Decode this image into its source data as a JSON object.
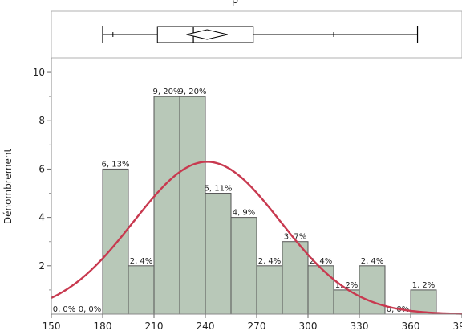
{
  "chart_data": {
    "type": "histogram",
    "title": "",
    "title_visible_fragment": "p",
    "xlabel": "",
    "ylabel": "Dénombrement",
    "xlim": [
      150,
      390
    ],
    "ylim": [
      0,
      10.6
    ],
    "x_ticks": [
      "150",
      "180",
      "210",
      "240",
      "270",
      "300",
      "330",
      "360",
      "390"
    ],
    "y_ticks": [
      "2",
      "4",
      "6",
      "8",
      "10"
    ],
    "bin_width": 15,
    "bins": [
      {
        "start": 150,
        "count": 0,
        "label": "0, 0%"
      },
      {
        "start": 165,
        "count": 0,
        "label": "0, 0%"
      },
      {
        "start": 180,
        "count": 6,
        "label": "6, 13%"
      },
      {
        "start": 195,
        "count": 2,
        "label": "2, 4%"
      },
      {
        "start": 210,
        "count": 9,
        "label": "9, 20%"
      },
      {
        "start": 225,
        "count": 9,
        "label": "9, 20%"
      },
      {
        "start": 240,
        "count": 5,
        "label": "5, 11%"
      },
      {
        "start": 255,
        "count": 4,
        "label": "4, 9%"
      },
      {
        "start": 270,
        "count": 2,
        "label": "2, 4%"
      },
      {
        "start": 285,
        "count": 3,
        "label": "3, 7%"
      },
      {
        "start": 300,
        "count": 2,
        "label": "2, 4%"
      },
      {
        "start": 315,
        "count": 1,
        "label": "1, 2%"
      },
      {
        "start": 330,
        "count": 2,
        "label": "2, 4%"
      },
      {
        "start": 345,
        "count": 0,
        "label": "0, 0%"
      },
      {
        "start": 360,
        "count": 1,
        "label": "1, 2%"
      }
    ],
    "normal_curve": {
      "mean": 241,
      "sd": 43,
      "peak_count": 6.3,
      "color": "#c8394f"
    },
    "box_plot": {
      "whisker_min": 180,
      "q1": 212,
      "median": 233,
      "q3": 268,
      "whisker_max": 364,
      "extra_ticks": [
        186,
        315
      ],
      "diamond": {
        "center": 241,
        "half_width": 12
      }
    },
    "bar_fill": "#b8c8b8",
    "bar_stroke": "#555555",
    "grid": false
  }
}
